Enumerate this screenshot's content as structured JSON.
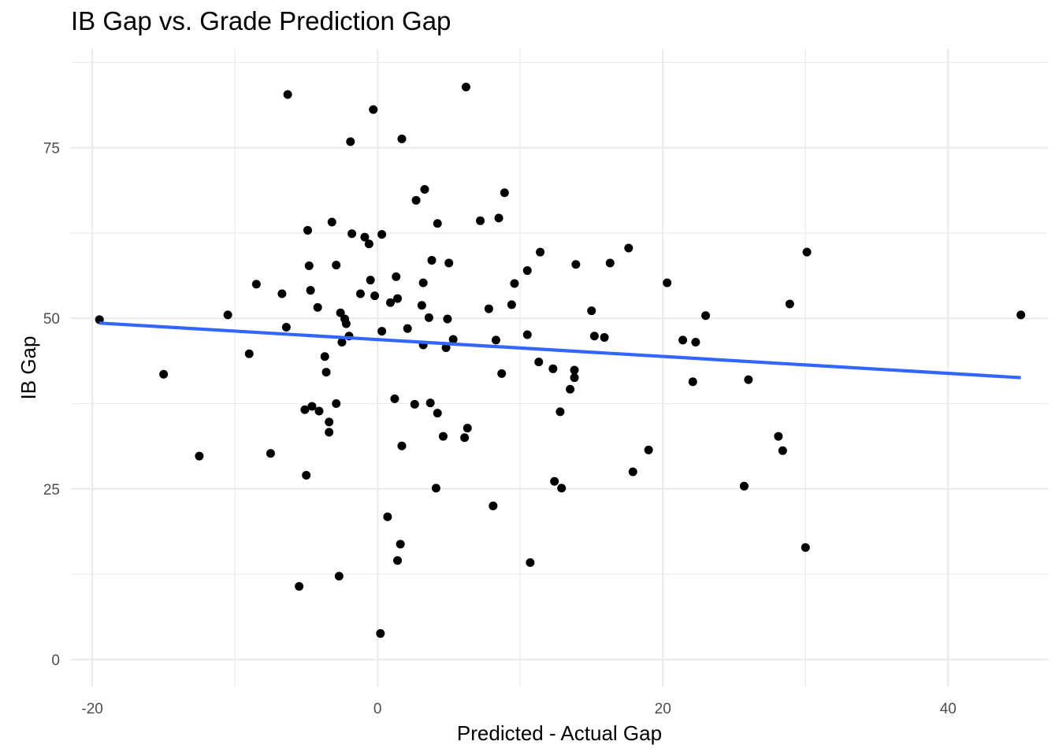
{
  "chart_data": {
    "type": "scatter",
    "title": "IB Gap vs. Grade Prediction Gap",
    "xlabel": "Predicted - Actual Gap",
    "ylabel": "IB Gap",
    "xlim": [
      -21.5,
      47
    ],
    "ylim": [
      -4,
      89.5
    ],
    "x_ticks": [
      -20,
      0,
      20,
      40
    ],
    "x_tick_labels": [
      "-20",
      "0",
      "20",
      "40"
    ],
    "y_ticks": [
      0,
      25,
      50,
      75
    ],
    "y_tick_labels": [
      "0",
      "25",
      "50",
      "75"
    ],
    "grid": true,
    "points": [
      [
        -19.5,
        49.8
      ],
      [
        -15,
        41.8
      ],
      [
        -12.5,
        29.8
      ],
      [
        -10.5,
        50.5
      ],
      [
        -9,
        44.8
      ],
      [
        -8.5,
        55
      ],
      [
        -7.5,
        30.2
      ],
      [
        -6.7,
        53.6
      ],
      [
        -6.4,
        48.7
      ],
      [
        -6.3,
        82.8
      ],
      [
        -5.5,
        10.7
      ],
      [
        -5.1,
        36.6
      ],
      [
        -5,
        27
      ],
      [
        -4.9,
        62.9
      ],
      [
        -4.8,
        57.7
      ],
      [
        -4.7,
        54.1
      ],
      [
        -4.6,
        37.1
      ],
      [
        -4.2,
        51.6
      ],
      [
        -4.1,
        36.4
      ],
      [
        -3.7,
        44.4
      ],
      [
        -3.6,
        42.1
      ],
      [
        -3.4,
        34.8
      ],
      [
        -3.4,
        33.3
      ],
      [
        -3.2,
        64.1
      ],
      [
        -2.9,
        57.8
      ],
      [
        -2.9,
        37.5
      ],
      [
        -2.7,
        12.2
      ],
      [
        -2.6,
        50.8
      ],
      [
        -2.5,
        46.5
      ],
      [
        -2.3,
        49.9
      ],
      [
        -2.2,
        49.2
      ],
      [
        -2,
        47.4
      ],
      [
        -1.9,
        75.9
      ],
      [
        -1.8,
        62.4
      ],
      [
        -1.2,
        53.6
      ],
      [
        -0.9,
        61.9
      ],
      [
        -0.6,
        60.9
      ],
      [
        -0.5,
        55.6
      ],
      [
        -0.3,
        80.6
      ],
      [
        -0.2,
        53.3
      ],
      [
        0.2,
        3.8
      ],
      [
        0.3,
        48.1
      ],
      [
        0.3,
        62.3
      ],
      [
        0.7,
        20.9
      ],
      [
        0.9,
        52.3
      ],
      [
        1.2,
        38.2
      ],
      [
        1.3,
        56.1
      ],
      [
        1.4,
        14.5
      ],
      [
        1.4,
        52.9
      ],
      [
        1.6,
        16.9
      ],
      [
        1.7,
        31.3
      ],
      [
        1.7,
        76.3
      ],
      [
        2.1,
        48.5
      ],
      [
        2.6,
        37.4
      ],
      [
        2.7,
        67.3
      ],
      [
        3.1,
        51.9
      ],
      [
        3.2,
        46.1
      ],
      [
        3.2,
        55.2
      ],
      [
        3.3,
        68.9
      ],
      [
        3.6,
        50.1
      ],
      [
        3.7,
        37.6
      ],
      [
        3.8,
        58.5
      ],
      [
        4.1,
        25.1
      ],
      [
        4.2,
        63.9
      ],
      [
        4.2,
        36.1
      ],
      [
        4.6,
        32.7
      ],
      [
        4.8,
        45.7
      ],
      [
        4.9,
        49.9
      ],
      [
        5,
        58.1
      ],
      [
        5.3,
        46.9
      ],
      [
        6.1,
        32.5
      ],
      [
        6.2,
        83.9
      ],
      [
        6.3,
        33.9
      ],
      [
        7.2,
        64.3
      ],
      [
        7.8,
        51.4
      ],
      [
        8.1,
        22.5
      ],
      [
        8.3,
        46.8
      ],
      [
        8.5,
        64.7
      ],
      [
        8.7,
        41.9
      ],
      [
        8.9,
        68.4
      ],
      [
        9.4,
        52
      ],
      [
        9.6,
        55.1
      ],
      [
        10.5,
        47.6
      ],
      [
        10.5,
        57
      ],
      [
        10.7,
        14.2
      ],
      [
        11.3,
        43.6
      ],
      [
        11.4,
        59.7
      ],
      [
        12.3,
        42.6
      ],
      [
        12.4,
        26.1
      ],
      [
        12.8,
        36.3
      ],
      [
        12.9,
        25.1
      ],
      [
        13.5,
        39.6
      ],
      [
        13.8,
        41.3
      ],
      [
        13.8,
        42.4
      ],
      [
        13.9,
        57.9
      ],
      [
        15,
        51.1
      ],
      [
        15.2,
        47.4
      ],
      [
        15.9,
        47.2
      ],
      [
        16.3,
        58.1
      ],
      [
        17.6,
        60.3
      ],
      [
        17.9,
        27.5
      ],
      [
        19,
        30.7
      ],
      [
        20.3,
        55.2
      ],
      [
        21.4,
        46.8
      ],
      [
        22.1,
        40.7
      ],
      [
        22.3,
        46.5
      ],
      [
        23,
        50.4
      ],
      [
        25.7,
        25.4
      ],
      [
        26,
        41
      ],
      [
        28.1,
        32.7
      ],
      [
        28.4,
        30.6
      ],
      [
        28.9,
        52.1
      ],
      [
        30,
        16.4
      ],
      [
        30.1,
        59.7
      ],
      [
        45.1,
        50.5
      ]
    ],
    "fit_line": {
      "x": [
        -19.5,
        45.1
      ],
      "y": [
        49.3,
        41.3
      ],
      "color": "#3366ff"
    },
    "point_color": "#000000"
  }
}
